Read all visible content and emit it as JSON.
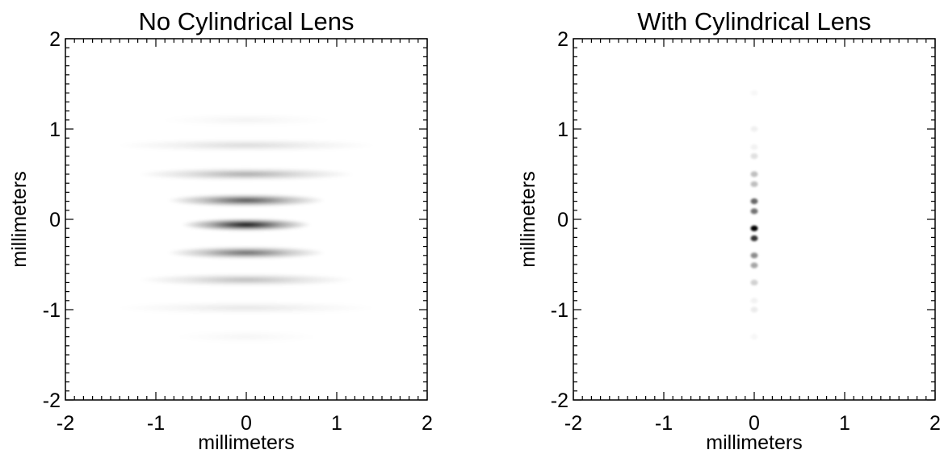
{
  "chart_data": [
    {
      "type": "heatmap",
      "title": "No Cylindrical Lens",
      "xlabel": "millimeters",
      "ylabel": "millimeters",
      "xlim": [
        -2,
        2
      ],
      "ylim": [
        -2,
        2
      ],
      "xticks": [
        -2,
        -1,
        0,
        1,
        2
      ],
      "yticks": [
        -2,
        -1,
        0,
        1,
        2
      ],
      "grid": false,
      "colormap": "inverted-grayscale",
      "pattern": "horizontal interference fringes centered at origin",
      "fringes": [
        {
          "y": -0.06,
          "peak_intensity": 1.0,
          "x_half_width": 0.45
        },
        {
          "y": 0.21,
          "peak_intensity": 0.72,
          "x_half_width": 0.55
        },
        {
          "y": -0.37,
          "peak_intensity": 0.62,
          "x_half_width": 0.55
        },
        {
          "y": 0.5,
          "peak_intensity": 0.35,
          "x_half_width": 0.75
        },
        {
          "y": -0.67,
          "peak_intensity": 0.28,
          "x_half_width": 0.75
        },
        {
          "y": 0.82,
          "peak_intensity": 0.15,
          "x_half_width": 0.9
        },
        {
          "y": -0.98,
          "peak_intensity": 0.1,
          "x_half_width": 0.9
        },
        {
          "y": 1.1,
          "peak_intensity": 0.05,
          "x_half_width": 0.6
        },
        {
          "y": -1.3,
          "peak_intensity": 0.04,
          "x_half_width": 0.5
        }
      ]
    },
    {
      "type": "heatmap",
      "title": "With Cylindrical Lens",
      "xlabel": "millimeters",
      "ylabel": "millimeters",
      "xlim": [
        -2,
        2
      ],
      "ylim": [
        -2,
        2
      ],
      "xticks": [
        -2,
        -1,
        0,
        1,
        2
      ],
      "yticks": [
        -2,
        -1,
        0,
        1,
        2
      ],
      "grid": false,
      "colormap": "inverted-grayscale",
      "pattern": "vertical column of spots along x = 0",
      "spots": [
        {
          "x": 0,
          "y": -0.1,
          "intensity": 1.0
        },
        {
          "x": 0,
          "y": -0.21,
          "intensity": 0.8
        },
        {
          "x": 0,
          "y": 0.2,
          "intensity": 0.6
        },
        {
          "x": 0,
          "y": 0.09,
          "intensity": 0.55
        },
        {
          "x": 0,
          "y": -0.4,
          "intensity": 0.45
        },
        {
          "x": 0,
          "y": -0.51,
          "intensity": 0.35
        },
        {
          "x": 0,
          "y": 0.5,
          "intensity": 0.25
        },
        {
          "x": 0,
          "y": 0.39,
          "intensity": 0.25
        },
        {
          "x": 0,
          "y": -0.7,
          "intensity": 0.18
        },
        {
          "x": 0,
          "y": 0.7,
          "intensity": 0.12
        },
        {
          "x": 0,
          "y": -1.0,
          "intensity": 0.08
        },
        {
          "x": 0,
          "y": 1.0,
          "intensity": 0.06
        },
        {
          "x": 0,
          "y": 0.8,
          "intensity": 0.05
        },
        {
          "x": 0,
          "y": -0.9,
          "intensity": 0.05
        },
        {
          "x": 0,
          "y": 1.4,
          "intensity": 0.03
        },
        {
          "x": 0,
          "y": -1.3,
          "intensity": 0.03
        }
      ]
    }
  ]
}
